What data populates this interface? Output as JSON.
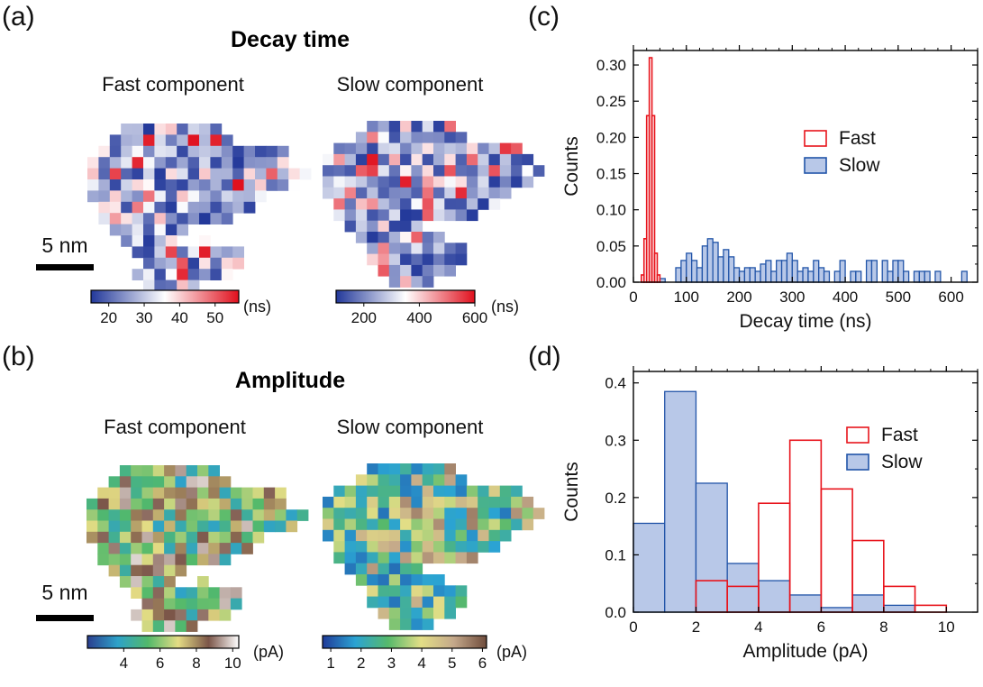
{
  "panels": {
    "a": {
      "label": "(a)",
      "title": "Decay time",
      "left_title": "Fast component",
      "right_title": "Slow component",
      "scale_label": "5 nm",
      "fast_colorbar": {
        "ticks": [
          "20",
          "30",
          "40",
          "50"
        ],
        "unit": "(ns)",
        "colors": [
          "#22389a",
          "#ffffff",
          "#e0101d"
        ]
      },
      "slow_colorbar": {
        "ticks": [
          "200",
          "400",
          "600"
        ],
        "unit": "(ns)",
        "colors": [
          "#22389a",
          "#ffffff",
          "#e0101d"
        ]
      }
    },
    "b": {
      "label": "(b)",
      "title": "Amplitude",
      "left_title": "Fast component",
      "right_title": "Slow component",
      "scale_label": "5 nm",
      "fast_colorbar": {
        "ticks": [
          "4",
          "6",
          "8",
          "10"
        ],
        "unit": "(pA)",
        "colors": [
          "#2b3f8f",
          "#2ea2c9",
          "#52b96a",
          "#e4dc84",
          "#7b5548",
          "#ffffff"
        ]
      },
      "slow_colorbar": {
        "ticks": [
          "1",
          "2",
          "3",
          "4",
          "5",
          "6"
        ],
        "unit": "(pA)",
        "colors": [
          "#1f3a98",
          "#2ba3d3",
          "#56b96b",
          "#e3de86",
          "#c4a88a",
          "#6f4c3c"
        ]
      }
    },
    "c": {
      "label": "(c)"
    },
    "d": {
      "label": "(d)"
    }
  },
  "chart_data": [
    {
      "id": "c",
      "type": "bar",
      "xlabel": "Decay time (ns)",
      "ylabel": "Counts",
      "xlim": [
        0,
        650
      ],
      "ylim": [
        0,
        0.32
      ],
      "xticks": [
        0,
        100,
        200,
        300,
        400,
        500,
        600
      ],
      "yticks": [
        0.0,
        0.05,
        0.1,
        0.15,
        0.2,
        0.25,
        0.3
      ],
      "ytick_labels": [
        "0.00",
        "0.05",
        "0.10",
        "0.15",
        "0.20",
        "0.25",
        "0.30"
      ],
      "legend_position": "center-right",
      "series": [
        {
          "name": "Fast",
          "style": "outline",
          "color": "#e8141c",
          "bin_width": 5,
          "x": [
            15,
            20,
            25,
            30,
            35,
            40,
            45
          ],
          "values": [
            0.01,
            0.06,
            0.23,
            0.31,
            0.23,
            0.04,
            0.01
          ]
        },
        {
          "name": "Slow",
          "style": "filled",
          "color": "#2154a8",
          "fill": "#b8c8e8",
          "bin_width": 10,
          "x": [
            50,
            80,
            90,
            100,
            110,
            120,
            130,
            140,
            150,
            160,
            170,
            180,
            190,
            200,
            210,
            220,
            230,
            240,
            250,
            260,
            270,
            280,
            290,
            300,
            310,
            320,
            330,
            340,
            350,
            360,
            370,
            380,
            390,
            400,
            410,
            420,
            430,
            440,
            450,
            460,
            470,
            480,
            490,
            500,
            510,
            520,
            530,
            540,
            550,
            560,
            570,
            580,
            590,
            600,
            610,
            620
          ],
          "values": [
            0.005,
            0.02,
            0.03,
            0.04,
            0.03,
            0.02,
            0.05,
            0.06,
            0.055,
            0.035,
            0.045,
            0.035,
            0.02,
            0.015,
            0.02,
            0.02,
            0.015,
            0.025,
            0.03,
            0.015,
            0.03,
            0.03,
            0.04,
            0.03,
            0.015,
            0.02,
            0.015,
            0.03,
            0.02,
            0.015,
            0.0,
            0.015,
            0.03,
            0.0,
            0.015,
            0.015,
            0.0,
            0.03,
            0.03,
            0.0,
            0.03,
            0.015,
            0.03,
            0.03,
            0.015,
            0.0,
            0.015,
            0.015,
            0.015,
            0.0,
            0.015,
            0.0,
            0.0,
            0.0,
            0.0,
            0.015
          ]
        }
      ]
    },
    {
      "id": "d",
      "type": "bar",
      "xlabel": "Amplitude (pA)",
      "ylabel": "Counts",
      "xlim": [
        0,
        11
      ],
      "ylim": [
        0,
        0.42
      ],
      "xticks": [
        0,
        2,
        4,
        6,
        8,
        10
      ],
      "yticks": [
        0.0,
        0.1,
        0.2,
        0.3,
        0.4
      ],
      "ytick_labels": [
        "0.0",
        "0.1",
        "0.2",
        "0.3",
        "0.4"
      ],
      "legend_position": "top-right",
      "series": [
        {
          "name": "Fast",
          "style": "outline",
          "color": "#e8141c",
          "bin_width": 1,
          "x": [
            2,
            3,
            4,
            5,
            6,
            7,
            8,
            9
          ],
          "values": [
            0.055,
            0.045,
            0.19,
            0.3,
            0.215,
            0.125,
            0.045,
            0.012
          ]
        },
        {
          "name": "Slow",
          "style": "filled",
          "color": "#2154a8",
          "fill": "#b8c8e8",
          "bin_width": 1,
          "x": [
            0,
            1,
            2,
            3,
            4,
            5,
            6,
            7,
            8
          ],
          "values": [
            0.155,
            0.385,
            0.225,
            0.085,
            0.055,
            0.03,
            0.008,
            0.03,
            0.012
          ]
        }
      ]
    }
  ]
}
